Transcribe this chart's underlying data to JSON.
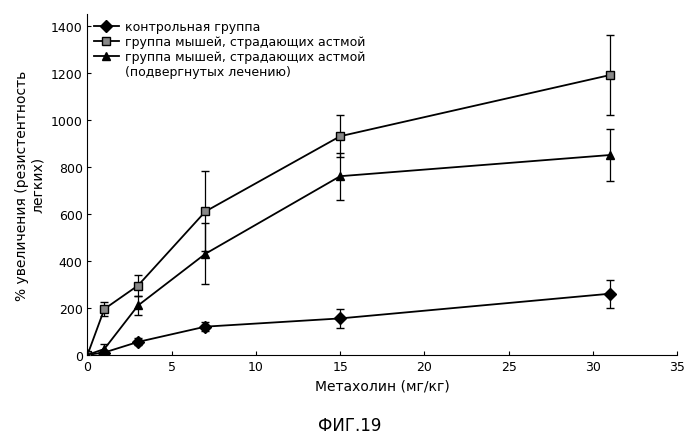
{
  "x": [
    0,
    1,
    3,
    7,
    15,
    31
  ],
  "control": [
    0,
    10,
    55,
    120,
    155,
    260
  ],
  "control_err": [
    0,
    10,
    15,
    20,
    40,
    60
  ],
  "asthma": [
    0,
    195,
    295,
    610,
    930,
    1190
  ],
  "asthma_err": [
    0,
    30,
    45,
    170,
    90,
    170
  ],
  "treated": [
    0,
    25,
    210,
    430,
    760,
    850
  ],
  "treated_err": [
    0,
    20,
    40,
    130,
    100,
    110
  ],
  "xlabel": "Метахолин (мг/кг)",
  "ylabel": "% увеличения (резистентность\nлегких)",
  "title": "ФИГ.19",
  "legend1": "контрольная группа",
  "legend2": "группа мышей, страдающих астмой",
  "legend3": "группа мышей, страдающих астмой",
  "legend4": "(подвергнутых лечению)",
  "xlim": [
    0,
    35
  ],
  "ylim": [
    0,
    1450
  ],
  "yticks": [
    0,
    200,
    400,
    600,
    800,
    1000,
    1200,
    1400
  ],
  "xticks": [
    0,
    5,
    10,
    15,
    20,
    25,
    30,
    35
  ],
  "bg_color": "#ffffff",
  "marker_size": 6,
  "linewidth": 1.3,
  "capsize": 3,
  "elinewidth": 0.9,
  "legend_fontsize": 9,
  "axis_fontsize": 10,
  "tick_fontsize": 9,
  "title_fontsize": 12
}
